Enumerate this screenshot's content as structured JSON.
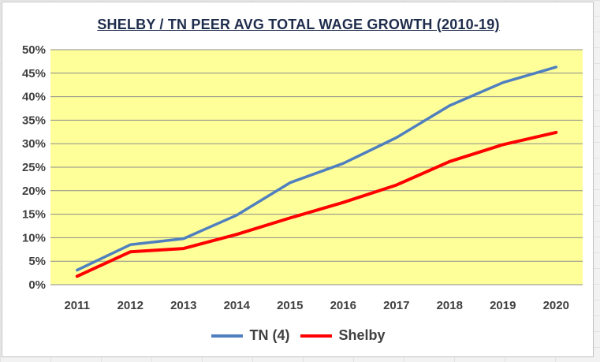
{
  "chart_data": {
    "type": "line",
    "title": "SHELBY / TN PEER AVG TOTAL WAGE GROWTH (2010-19)",
    "xlabel": "",
    "ylabel": "",
    "categories": [
      "2011",
      "2012",
      "2013",
      "2014",
      "2015",
      "2016",
      "2017",
      "2018",
      "2019",
      "2020"
    ],
    "ylim": [
      0,
      0.5
    ],
    "yticks": [
      0,
      0.05,
      0.1,
      0.15,
      0.2,
      0.25,
      0.3,
      0.35,
      0.4,
      0.45,
      0.5
    ],
    "ytick_labels": [
      "0%",
      "5%",
      "10%",
      "15%",
      "20%",
      "25%",
      "30%",
      "35%",
      "40%",
      "45%",
      "50%"
    ],
    "grid": true,
    "plot_background": "#ffff99",
    "legend_position": "bottom",
    "series": [
      {
        "name": "TN (4)",
        "color": "#4f7fbf",
        "values": [
          0.031,
          0.085,
          0.098,
          0.148,
          0.217,
          0.258,
          0.313,
          0.381,
          0.43,
          0.463
        ]
      },
      {
        "name": "Shelby",
        "color": "#ff0000",
        "values": [
          0.018,
          0.07,
          0.077,
          0.107,
          0.142,
          0.175,
          0.212,
          0.262,
          0.298,
          0.324
        ]
      }
    ]
  }
}
